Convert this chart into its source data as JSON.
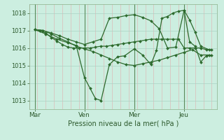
{
  "background_color": "#cceee0",
  "grid_major_color": "#aad4c4",
  "grid_minor_color": "#ddbbb8",
  "line_color": "#2d6a2d",
  "marker_color": "#2d6a2d",
  "title": "Pression niveau de la mer( hPa )",
  "ylim": [
    1012.5,
    1018.5
  ],
  "yticks": [
    1013,
    1014,
    1015,
    1016,
    1017,
    1018
  ],
  "day_labels": [
    "Mar",
    "Ven",
    "Mer",
    "Jeu"
  ],
  "day_positions": [
    0,
    36,
    72,
    108
  ],
  "xlim": [
    -4,
    132
  ],
  "series1_x": [
    0,
    4,
    8,
    12,
    16,
    20,
    24,
    28,
    32,
    36,
    40,
    44,
    48,
    52,
    56,
    60,
    64,
    68,
    72,
    76,
    80,
    84,
    88,
    92,
    96,
    100,
    104,
    108,
    112,
    116,
    120,
    124,
    128
  ],
  "series1_y": [
    1017.05,
    1017.0,
    1016.85,
    1016.6,
    1016.4,
    1016.2,
    1016.05,
    1016.0,
    1016.0,
    1016.0,
    1016.0,
    1016.05,
    1016.1,
    1016.1,
    1016.15,
    1016.2,
    1016.25,
    1016.3,
    1016.35,
    1016.4,
    1016.45,
    1016.5,
    1016.5,
    1016.5,
    1016.5,
    1016.5,
    1016.5,
    1016.0,
    1016.0,
    1016.0,
    1016.0,
    1015.9,
    1015.9
  ],
  "series2_x": [
    0,
    6,
    12,
    18,
    24,
    30,
    36,
    42,
    48,
    54,
    60,
    66,
    72,
    78,
    84,
    90,
    96,
    102,
    108,
    114,
    120,
    126
  ],
  "series2_y": [
    1017.05,
    1017.0,
    1016.8,
    1016.55,
    1016.35,
    1016.1,
    1015.95,
    1015.8,
    1015.6,
    1015.4,
    1015.2,
    1015.05,
    1015.0,
    1015.1,
    1015.2,
    1015.3,
    1015.45,
    1015.6,
    1015.75,
    1015.9,
    1015.6,
    1015.6
  ],
  "series3_x": [
    0,
    8,
    16,
    24,
    30,
    36,
    40,
    44,
    48,
    54,
    60,
    65,
    72,
    78,
    84,
    88,
    92,
    96,
    100,
    104,
    108,
    112,
    116,
    120,
    124,
    128
  ],
  "series3_y": [
    1017.05,
    1016.8,
    1016.5,
    1016.3,
    1016.15,
    1014.3,
    1013.7,
    1013.1,
    1013.0,
    1015.05,
    1015.5,
    1015.55,
    1015.95,
    1015.6,
    1015.05,
    1015.85,
    1017.7,
    1017.8,
    1018.0,
    1018.1,
    1018.15,
    1016.35,
    1016.1,
    1015.2,
    1015.55,
    1015.6
  ],
  "series4_x": [
    0,
    6,
    12,
    18,
    24,
    30,
    36,
    42,
    48,
    54,
    60,
    66,
    72,
    78,
    84,
    90,
    96,
    102,
    108,
    112,
    116,
    120,
    126
  ],
  "series4_y": [
    1017.05,
    1017.0,
    1016.85,
    1016.7,
    1016.5,
    1016.35,
    1016.2,
    1016.35,
    1016.5,
    1017.7,
    1017.75,
    1017.85,
    1017.9,
    1017.75,
    1017.55,
    1017.1,
    1016.0,
    1016.05,
    1018.15,
    1017.6,
    1016.9,
    1016.1,
    1015.9
  ]
}
